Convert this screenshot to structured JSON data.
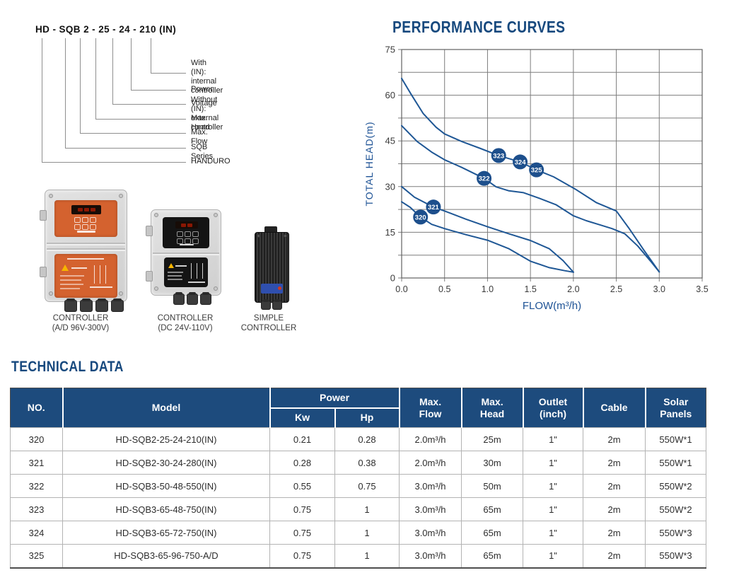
{
  "nomenclature": {
    "model_code": "HD - SQB 2 - 25 - 24 - 210 (IN)",
    "labels": [
      "With (IN): internal controller\nWithout (IN): external controller",
      "Power",
      "Voltage",
      "Max. Head",
      "Max. Flow",
      "SQB Series",
      "HANDURO"
    ]
  },
  "controllers": [
    {
      "caption": "CONTROLLER\n(A/D 96V-300V)"
    },
    {
      "caption": "CONTROLLER\n(DC 24V-110V)"
    },
    {
      "caption": "SIMPLE\nCONTROLLER"
    }
  ],
  "chart_data": {
    "type": "line",
    "title": "PERFORMANCE CURVES",
    "xlabel": "FLOW(m³/h)",
    "ylabel": "TOTAL HEAD(m)",
    "xlim": [
      0,
      3.5
    ],
    "ylim": [
      0,
      75
    ],
    "xticks": [
      "0.0",
      "0.5",
      "1.0",
      "1.5",
      "2.0",
      "2.5",
      "3.0",
      "3.5"
    ],
    "yticks": [
      "0",
      "15",
      "30",
      "45",
      "60",
      "75"
    ],
    "grid": {
      "x_step": 0.5,
      "y_step": 7.5,
      "color": "#7d7d7d"
    },
    "line_color": "#1f5795",
    "badge_color": "#1d4f8c",
    "series": [
      {
        "name": "320",
        "points": [
          [
            0,
            25
          ],
          [
            0.1,
            23.2
          ],
          [
            0.22,
            20
          ],
          [
            0.35,
            17.6
          ],
          [
            0.5,
            16.2
          ],
          [
            0.75,
            14.2
          ],
          [
            1.0,
            12.4
          ],
          [
            1.25,
            9.6
          ],
          [
            1.5,
            5.5
          ],
          [
            1.72,
            3.4
          ],
          [
            1.9,
            2.4
          ],
          [
            2.0,
            1.9
          ]
        ]
      },
      {
        "name": "321",
        "points": [
          [
            0,
            30
          ],
          [
            0.15,
            26.5
          ],
          [
            0.37,
            23.3
          ],
          [
            0.5,
            22
          ],
          [
            0.75,
            19.3
          ],
          [
            1.0,
            16.8
          ],
          [
            1.25,
            14.5
          ],
          [
            1.5,
            12.3
          ],
          [
            1.72,
            9.6
          ],
          [
            1.88,
            5.7
          ],
          [
            2.0,
            1.9
          ]
        ]
      },
      {
        "name": "322",
        "points": [
          [
            0,
            50
          ],
          [
            0.18,
            44.8
          ],
          [
            0.35,
            41.3
          ],
          [
            0.5,
            38.8
          ],
          [
            0.7,
            36.3
          ],
          [
            0.96,
            32.7
          ],
          [
            1.1,
            29.9
          ],
          [
            1.25,
            28.6
          ],
          [
            1.42,
            28
          ],
          [
            1.6,
            26.2
          ],
          [
            1.8,
            24
          ],
          [
            2.0,
            20.4
          ],
          [
            2.15,
            18.8
          ],
          [
            2.3,
            17.5
          ],
          [
            2.45,
            16.2
          ],
          [
            2.6,
            14.5
          ],
          [
            2.75,
            10.5
          ],
          [
            2.9,
            5.5
          ],
          [
            3.0,
            2
          ]
        ]
      },
      {
        "name": "323/324/325",
        "points": [
          [
            0,
            65.5
          ],
          [
            0.11,
            60.3
          ],
          [
            0.25,
            54
          ],
          [
            0.4,
            49.5
          ],
          [
            0.5,
            47.3
          ],
          [
            0.7,
            44.8
          ],
          [
            0.92,
            42.5
          ],
          [
            1.13,
            40.2
          ],
          [
            1.38,
            38.1
          ],
          [
            1.57,
            35.5
          ],
          [
            1.77,
            33.2
          ],
          [
            2.02,
            29.2
          ],
          [
            2.27,
            24.7
          ],
          [
            2.5,
            22
          ],
          [
            2.65,
            16.2
          ],
          [
            2.82,
            9.2
          ],
          [
            3.0,
            2
          ]
        ]
      }
    ],
    "markers": [
      {
        "label": "320",
        "x": 0.22,
        "y": 20
      },
      {
        "label": "321",
        "x": 0.37,
        "y": 23.3
      },
      {
        "label": "322",
        "x": 0.96,
        "y": 32.7
      },
      {
        "label": "323",
        "x": 1.13,
        "y": 40.2
      },
      {
        "label": "324",
        "x": 1.38,
        "y": 38.1
      },
      {
        "label": "325",
        "x": 1.57,
        "y": 35.5
      }
    ]
  },
  "table": {
    "title": "TECHNICAL DATA",
    "header": {
      "no": "NO.",
      "model": "Model",
      "power": "Power",
      "kw": "Kw",
      "hp": "Hp",
      "max_flow": "Max.\nFlow",
      "max_head": "Max.\nHead",
      "outlet": "Outlet\n(inch)",
      "cable": "Cable",
      "solar": "Solar\nPanels"
    },
    "rows": [
      [
        "320",
        "HD-SQB2-25-24-210(IN)",
        "0.21",
        "0.28",
        "2.0m³/h",
        "25m",
        "1\"",
        "2m",
        "550W*1"
      ],
      [
        "321",
        "HD-SQB2-30-24-280(IN)",
        "0.28",
        "0.38",
        "2.0m³/h",
        "30m",
        "1\"",
        "2m",
        "550W*1"
      ],
      [
        "322",
        "HD-SQB3-50-48-550(IN)",
        "0.55",
        "0.75",
        "3.0m³/h",
        "50m",
        "1\"",
        "2m",
        "550W*2"
      ],
      [
        "323",
        "HD-SQB3-65-48-750(IN)",
        "0.75",
        "1",
        "3.0m³/h",
        "65m",
        "1\"",
        "2m",
        "550W*2"
      ],
      [
        "324",
        "HD-SQB3-65-72-750(IN)",
        "0.75",
        "1",
        "3.0m³/h",
        "65m",
        "1\"",
        "2m",
        "550W*3"
      ],
      [
        "325",
        "HD-SQB3-65-96-750-A/D",
        "0.75",
        "1",
        "3.0m³/h",
        "65m",
        "1\"",
        "2m",
        "550W*3"
      ]
    ]
  },
  "colors": {
    "accent_blue": "#1d4b7d",
    "curve_blue": "#1f5795",
    "panel_orange": "#d4622f"
  }
}
